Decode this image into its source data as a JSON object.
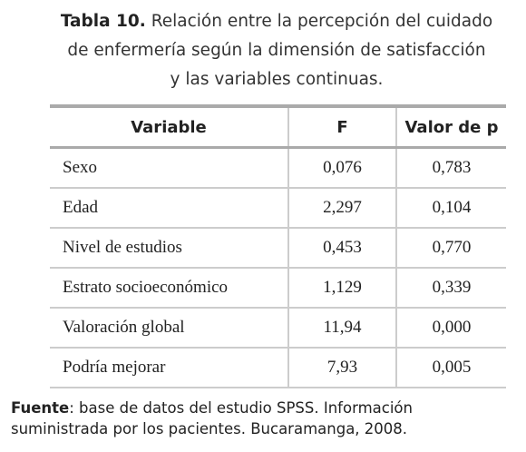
{
  "caption": {
    "label": "Tabla 10.",
    "lines": [
      "Relación entre la percepción del cuidado",
      "de enfermería según la dimensión de satisfacción",
      "y las variables continuas."
    ]
  },
  "table": {
    "columns": [
      "Variable",
      "F",
      "Valor de p"
    ],
    "rows": [
      [
        "Sexo",
        "0,076",
        "0,783"
      ],
      [
        "Edad",
        "2,297",
        "0,104"
      ],
      [
        "Nivel de estudios",
        "0,453",
        "0,770"
      ],
      [
        "Estrato socioeconómico",
        "1,129",
        "0,339"
      ],
      [
        "Valoración global",
        "11,94",
        "0,000"
      ],
      [
        "Podría mejorar",
        "7,93",
        "0,005"
      ]
    ]
  },
  "footer": {
    "label": "Fuente",
    "text": ": base de datos del estudio SPSS. Información suministrada por los pacientes. Bucaramanga, 2008."
  }
}
